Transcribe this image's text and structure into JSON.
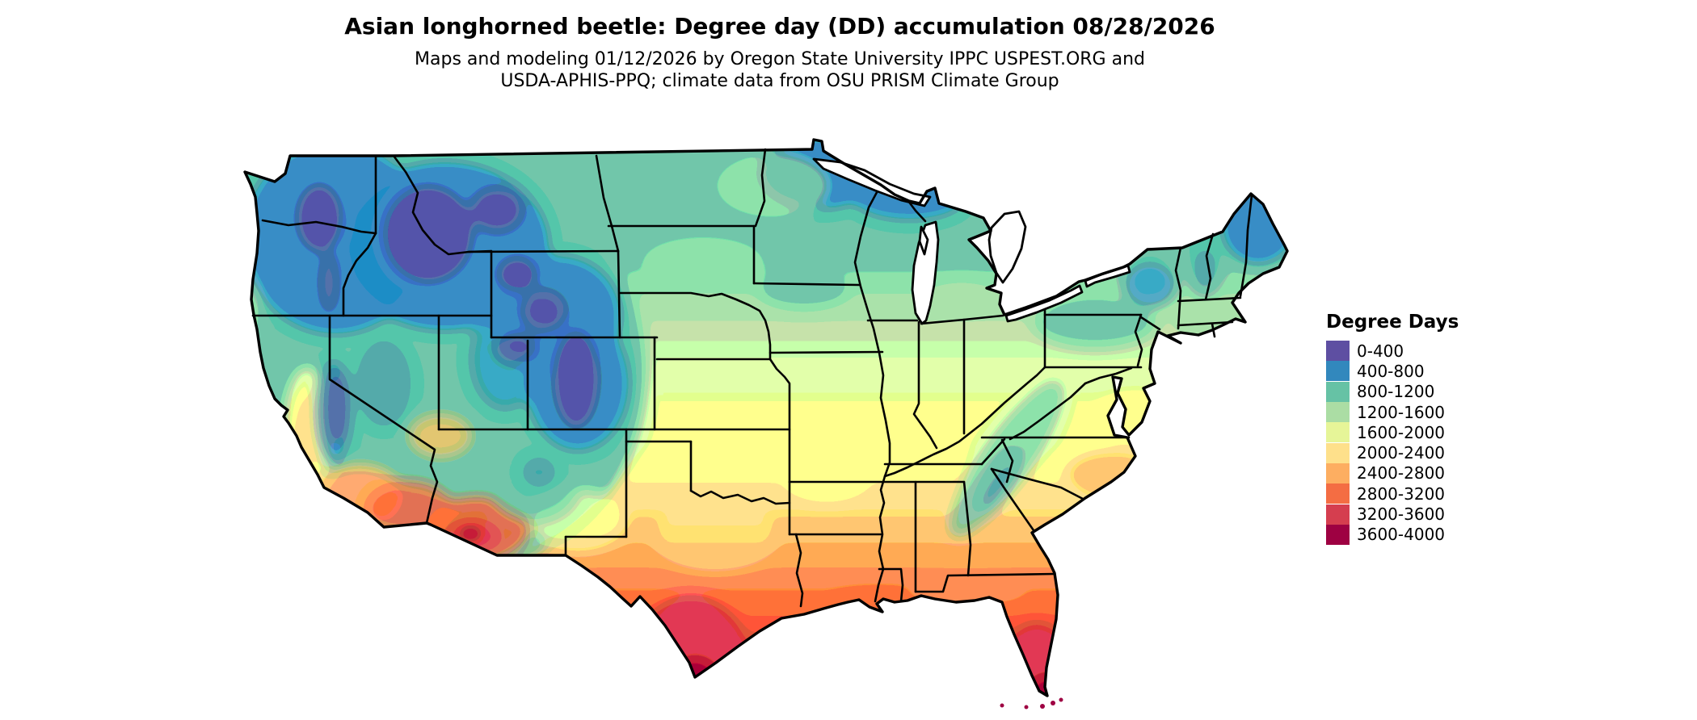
{
  "title": "Asian longhorned beetle: Degree day (DD) accumulation 08/28/2026",
  "subtitle_line1": "Maps and modeling 01/12/2026 by Oregon State University IPPC USPEST.ORG and",
  "subtitle_line2": "USDA-APHIS-PPQ; climate data from OSU PRISM Climate Group",
  "legend": {
    "title": "Degree Days",
    "items": [
      {
        "label": "0-400",
        "color": "#5e4fa2"
      },
      {
        "label": "400-800",
        "color": "#3288bd"
      },
      {
        "label": "800-1200",
        "color": "#66c2a5"
      },
      {
        "label": "1200-1600",
        "color": "#abdda4"
      },
      {
        "label": "1600-2000",
        "color": "#e6f598"
      },
      {
        "label": "2000-2400",
        "color": "#fee08b"
      },
      {
        "label": "2400-2800",
        "color": "#fdae61"
      },
      {
        "label": "2800-3200",
        "color": "#f46d43"
      },
      {
        "label": "3200-3600",
        "color": "#d53e4f"
      },
      {
        "label": "3600-4000",
        "color": "#9e0142"
      }
    ]
  },
  "chart_data": {
    "type": "heatmap",
    "subtype": "raster-choropleth-map",
    "region_shown": "Conterminous United States with state boundaries",
    "variable": "Accumulated degree days (DD) for Asian longhorned beetle",
    "accumulation_date": "08/28/2026",
    "model_run_date": "01/12/2026",
    "bins": [
      {
        "range": "0-400",
        "color": "#5e4fa2"
      },
      {
        "range": "400-800",
        "color": "#3288bd"
      },
      {
        "range": "800-1200",
        "color": "#66c2a5"
      },
      {
        "range": "1200-1600",
        "color": "#abdda4"
      },
      {
        "range": "1600-2000",
        "color": "#e6f598"
      },
      {
        "range": "2000-2400",
        "color": "#fee08b"
      },
      {
        "range": "2400-2800",
        "color": "#fdae61"
      },
      {
        "range": "2800-3200",
        "color": "#f46d43"
      },
      {
        "range": "3200-3600",
        "color": "#d53e4f"
      },
      {
        "range": "3600-4000",
        "color": "#9e0142"
      }
    ],
    "legend_position": "right",
    "approximate_regional_values": [
      {
        "region": "Cascades / Northern Rockies (ID, W MT, NW WY)",
        "degree_days": "0-800"
      },
      {
        "region": "Colorado Rockies / Uintas / Sierra Nevada crest",
        "degree_days": "0-800"
      },
      {
        "region": "Pacific Northwest (W WA/OR lowlands)",
        "degree_days": "800-1600"
      },
      {
        "region": "Great Basin (NV, UT)",
        "degree_days": "800-1600"
      },
      {
        "region": "Northern Plains (E MT, ND, SD, MN)",
        "degree_days": "800-1200"
      },
      {
        "region": "Upper Great Lakes (N MN, N WI, Upper MI) and N Maine",
        "degree_days": "400-800"
      },
      {
        "region": "California Central Valley",
        "degree_days": "1600-2400"
      },
      {
        "region": "Central Plains / Corn Belt (NE, IA, IL, IN, OH)",
        "degree_days": "1200-2000"
      },
      {
        "region": "Kansas / Missouri / Virginia",
        "degree_days": "1600-2400"
      },
      {
        "region": "Oklahoma / N Texas / Carolinas",
        "degree_days": "2000-2800"
      },
      {
        "region": "Southern Arizona deserts",
        "degree_days": "2800-4000"
      },
      {
        "region": "Gulf Coast (TX/LA/MS/AL) and central Florida",
        "degree_days": "2800-3200"
      },
      {
        "region": "South Texas (Rio Grande Valley)",
        "degree_days": "3200-4000"
      },
      {
        "region": "South Florida and Keys",
        "degree_days": "3600-4000"
      }
    ]
  }
}
